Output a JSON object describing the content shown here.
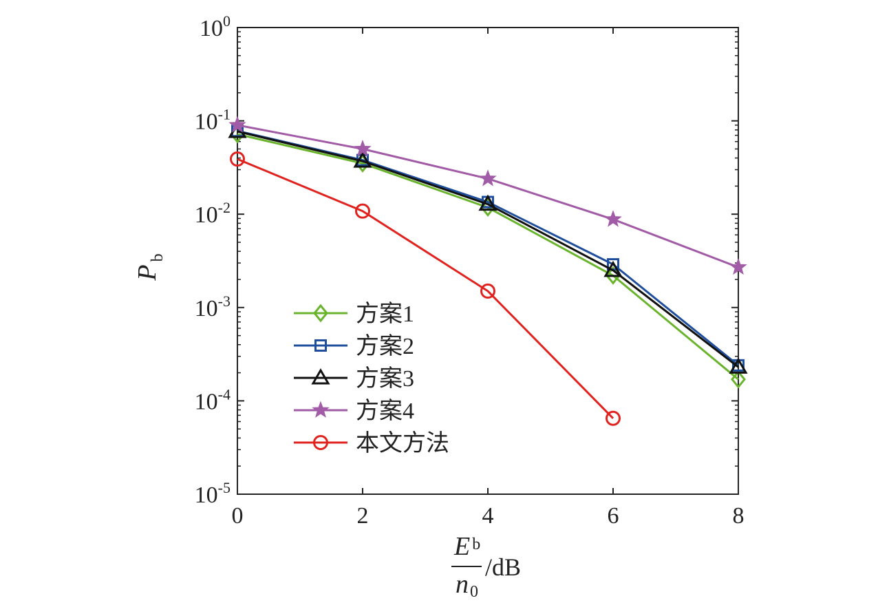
{
  "chart_data": {
    "type": "line",
    "y_scale": "log",
    "xlim": [
      0,
      8
    ],
    "ylim": [
      1e-05,
      1
    ],
    "x_ticks": [
      "0",
      "2",
      "4",
      "6",
      "8"
    ],
    "y_ticks": [
      {
        "base": "10",
        "exp": "0",
        "value": 1
      },
      {
        "base": "10",
        "exp": "-1",
        "value": 0.1
      },
      {
        "base": "10",
        "exp": "-2",
        "value": 0.01
      },
      {
        "base": "10",
        "exp": "-3",
        "value": 0.001
      },
      {
        "base": "10",
        "exp": "-4",
        "value": 0.0001
      },
      {
        "base": "10",
        "exp": "-5",
        "value": 1e-05
      }
    ],
    "ylabel": {
      "main": "P",
      "sub": "b"
    },
    "xlabel": {
      "numerator": "E",
      "numerator_sub": "b",
      "denominator": "n",
      "denominator_sub": "0",
      "unit": "/dB"
    },
    "legend_position": "lower-left",
    "series": [
      {
        "name": "方案1",
        "color": "#6ab42d",
        "marker": "diamond",
        "x": [
          0,
          2,
          4,
          6,
          8
        ],
        "y": [
          0.072,
          0.035,
          0.0118,
          0.0022,
          0.00017
        ]
      },
      {
        "name": "方案2",
        "color": "#1f4e9c",
        "marker": "square",
        "x": [
          0,
          2,
          4,
          6,
          8
        ],
        "y": [
          0.078,
          0.038,
          0.0135,
          0.0029,
          0.00024
        ]
      },
      {
        "name": "方案3",
        "color": "#111111",
        "marker": "triangle",
        "x": [
          0,
          2,
          4,
          6,
          8
        ],
        "y": [
          0.077,
          0.037,
          0.0128,
          0.0025,
          0.00023
        ]
      },
      {
        "name": "方案4",
        "color": "#a25ba6",
        "marker": "star",
        "x": [
          0,
          2,
          4,
          6,
          8
        ],
        "y": [
          0.09,
          0.05,
          0.024,
          0.0088,
          0.0027
        ]
      },
      {
        "name": "本文方法",
        "color": "#e0231f",
        "marker": "circle",
        "x": [
          0,
          2,
          4,
          6
        ],
        "y": [
          0.039,
          0.0108,
          0.0015,
          6.5e-05
        ]
      }
    ]
  }
}
